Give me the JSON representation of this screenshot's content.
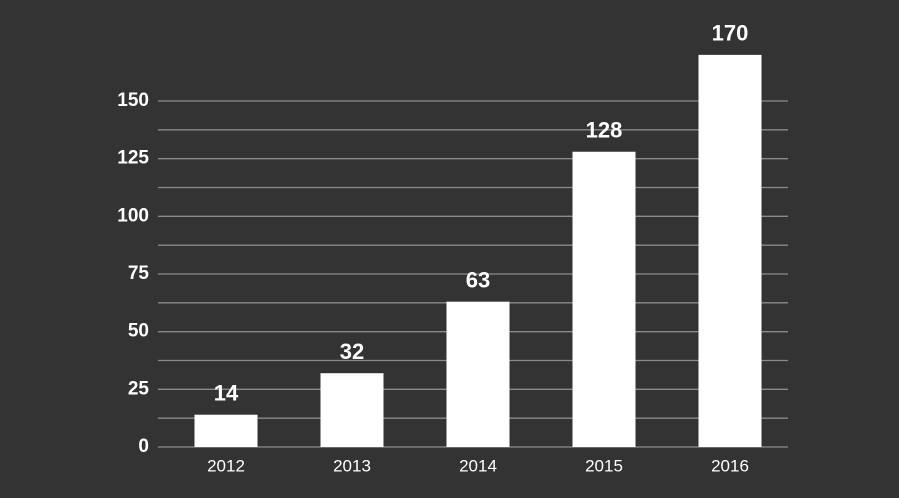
{
  "chart_data": {
    "type": "bar",
    "categories": [
      "2012",
      "2013",
      "2014",
      "2015",
      "2016"
    ],
    "values": [
      14,
      32,
      63,
      128,
      170
    ],
    "color": "#ffffff",
    "ylim": [
      0,
      175
    ],
    "yticks": [
      0,
      25,
      50,
      75,
      100,
      125,
      150
    ],
    "minor_yticks": [
      12.5,
      37.5,
      62.5,
      87.5,
      112.5,
      137.5
    ],
    "grid": true
  }
}
